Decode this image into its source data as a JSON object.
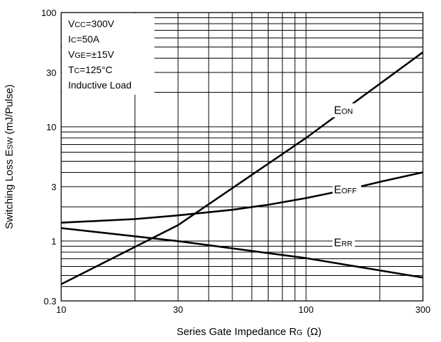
{
  "chart_data": {
    "type": "line",
    "xlabel": "Series Gate Impedance R",
    "xlabel_sub": "G",
    "xlabel_unit": "(Ω)",
    "ylabel": "Switching Loss E",
    "ylabel_sub": "SW",
    "ylabel_unit": "(mJ/Pulse)",
    "xscale": "log",
    "yscale": "log",
    "xlim": [
      10,
      300
    ],
    "ylim": [
      0.3,
      100
    ],
    "x_ticks": [
      {
        "value": 10,
        "label": "10"
      },
      {
        "value": 30,
        "label": "30"
      },
      {
        "value": 100,
        "label": "100"
      },
      {
        "value": 300,
        "label": "300"
      }
    ],
    "y_ticks": [
      {
        "value": 0.3,
        "label": "0.3"
      },
      {
        "value": 1,
        "label": "1"
      },
      {
        "value": 3,
        "label": "3"
      },
      {
        "value": 10,
        "label": "10"
      },
      {
        "value": 30,
        "label": "30"
      },
      {
        "value": 100,
        "label": "100"
      }
    ],
    "grid": true,
    "conditions": [
      {
        "main": "V",
        "sub": "CC",
        "rest": "=300V"
      },
      {
        "main": "I",
        "sub": "C",
        "rest": "=50A"
      },
      {
        "main": "V",
        "sub": "GE",
        "rest": "=±15V"
      },
      {
        "main": "T",
        "sub": "C",
        "rest": "=125°C"
      },
      {
        "main": "Inductive Load",
        "sub": "",
        "rest": ""
      }
    ],
    "series": [
      {
        "name": "E_ON",
        "label_main": "E",
        "label_sub": "ON",
        "x": [
          10,
          30,
          100,
          300
        ],
        "y": [
          0.42,
          1.38,
          8.0,
          45
        ]
      },
      {
        "name": "E_OFF",
        "label_main": "E",
        "label_sub": "OFF",
        "x": [
          10,
          20,
          30,
          50,
          70,
          100,
          150,
          200,
          300
        ],
        "y": [
          1.45,
          1.56,
          1.68,
          1.88,
          2.08,
          2.38,
          2.85,
          3.3,
          4.0
        ]
      },
      {
        "name": "E_RR",
        "label_main": "E",
        "label_sub": "RR",
        "x": [
          10,
          30,
          100,
          300
        ],
        "y": [
          1.3,
          1.0,
          0.71,
          0.48
        ]
      }
    ]
  }
}
